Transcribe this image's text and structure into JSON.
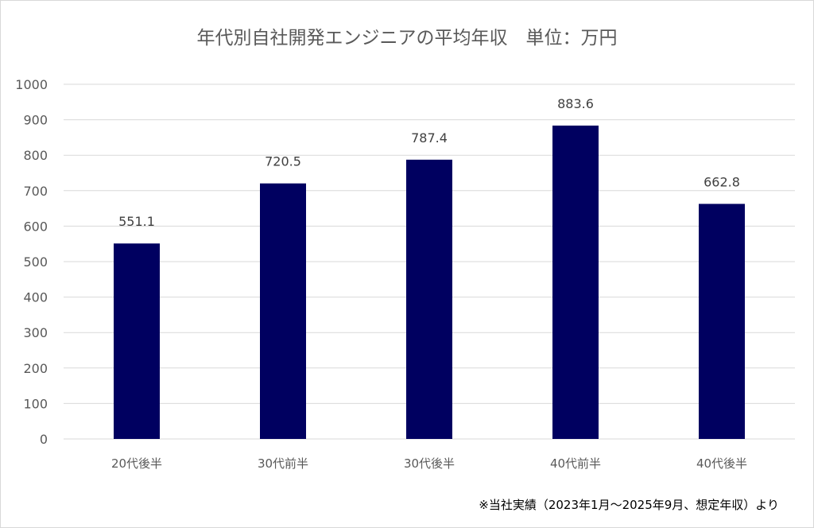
{
  "chart_data": {
    "type": "bar",
    "title": "年代別自社開発エンジニアの平均年収　単位：万円",
    "categories": [
      "20代後半",
      "30代前半",
      "30代後半",
      "40代前半",
      "40代後半"
    ],
    "values": [
      551.1,
      720.5,
      787.4,
      883.6,
      662.8
    ],
    "data_labels": [
      "551.1",
      "720.5",
      "787.4",
      "883.6",
      "662.8"
    ],
    "xlabel": "",
    "ylabel": "",
    "ylim": [
      0,
      1000
    ],
    "yticks": [
      0,
      100,
      200,
      300,
      400,
      500,
      600,
      700,
      800,
      900,
      1000
    ],
    "grid": true,
    "legend": "none",
    "bar_color": "#000060",
    "footnote": "※当社実績（2023年1月～2025年9月、想定年収）より"
  }
}
